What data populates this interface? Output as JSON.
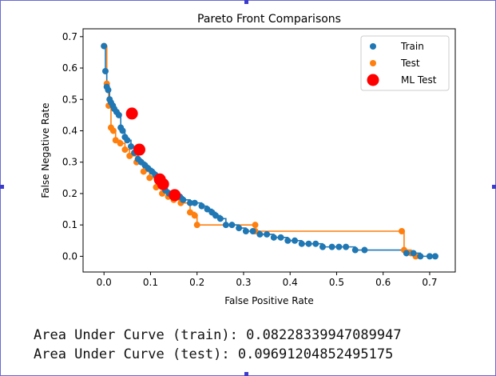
{
  "chart_data": {
    "type": "scatter",
    "title": "Pareto Front Comparisons",
    "xlabel": "False Positive Rate",
    "ylabel": "False Negative Rate",
    "xlim": [
      -0.045,
      0.755
    ],
    "ylim": [
      -0.05,
      0.725
    ],
    "xticks": [
      "0.0",
      "0.1",
      "0.2",
      "0.3",
      "0.4",
      "0.5",
      "0.6",
      "0.7"
    ],
    "yticks": [
      "0.0",
      "0.1",
      "0.2",
      "0.3",
      "0.4",
      "0.5",
      "0.6",
      "0.7"
    ],
    "legend_position": "top-right",
    "grid": false,
    "series": [
      {
        "name": "Train",
        "color": "#1f77b4",
        "marker": "circle",
        "step_line": true,
        "points": [
          [
            0.0,
            0.67
          ],
          [
            0.003,
            0.59
          ],
          [
            0.006,
            0.54
          ],
          [
            0.009,
            0.53
          ],
          [
            0.012,
            0.5
          ],
          [
            0.015,
            0.49
          ],
          [
            0.019,
            0.48
          ],
          [
            0.022,
            0.47
          ],
          [
            0.027,
            0.46
          ],
          [
            0.032,
            0.45
          ],
          [
            0.036,
            0.41
          ],
          [
            0.04,
            0.4
          ],
          [
            0.045,
            0.38
          ],
          [
            0.05,
            0.37
          ],
          [
            0.058,
            0.35
          ],
          [
            0.065,
            0.33
          ],
          [
            0.073,
            0.31
          ],
          [
            0.08,
            0.3
          ],
          [
            0.088,
            0.29
          ],
          [
            0.095,
            0.28
          ],
          [
            0.103,
            0.27
          ],
          [
            0.11,
            0.26
          ],
          [
            0.118,
            0.25
          ],
          [
            0.125,
            0.23
          ],
          [
            0.132,
            0.21
          ],
          [
            0.14,
            0.2
          ],
          [
            0.148,
            0.2
          ],
          [
            0.155,
            0.19
          ],
          [
            0.163,
            0.19
          ],
          [
            0.17,
            0.18
          ],
          [
            0.185,
            0.17
          ],
          [
            0.195,
            0.17
          ],
          [
            0.21,
            0.16
          ],
          [
            0.222,
            0.15
          ],
          [
            0.232,
            0.14
          ],
          [
            0.24,
            0.13
          ],
          [
            0.25,
            0.12
          ],
          [
            0.262,
            0.1
          ],
          [
            0.275,
            0.1
          ],
          [
            0.29,
            0.09
          ],
          [
            0.305,
            0.08
          ],
          [
            0.32,
            0.08
          ],
          [
            0.335,
            0.07
          ],
          [
            0.35,
            0.07
          ],
          [
            0.365,
            0.06
          ],
          [
            0.38,
            0.06
          ],
          [
            0.395,
            0.05
          ],
          [
            0.41,
            0.05
          ],
          [
            0.425,
            0.04
          ],
          [
            0.44,
            0.04
          ],
          [
            0.455,
            0.04
          ],
          [
            0.47,
            0.03
          ],
          [
            0.49,
            0.03
          ],
          [
            0.505,
            0.03
          ],
          [
            0.52,
            0.03
          ],
          [
            0.54,
            0.02
          ],
          [
            0.56,
            0.02
          ],
          [
            0.65,
            0.01
          ],
          [
            0.665,
            0.01
          ],
          [
            0.68,
            0.0
          ],
          [
            0.7,
            0.0
          ],
          [
            0.712,
            0.0
          ]
        ]
      },
      {
        "name": "Test",
        "color": "#ff7f0e",
        "marker": "circle",
        "step_line": true,
        "points": [
          [
            0.0,
            0.67
          ],
          [
            0.006,
            0.55
          ],
          [
            0.01,
            0.48
          ],
          [
            0.015,
            0.41
          ],
          [
            0.02,
            0.4
          ],
          [
            0.025,
            0.37
          ],
          [
            0.035,
            0.36
          ],
          [
            0.045,
            0.34
          ],
          [
            0.055,
            0.32
          ],
          [
            0.07,
            0.3
          ],
          [
            0.085,
            0.27
          ],
          [
            0.098,
            0.25
          ],
          [
            0.112,
            0.22
          ],
          [
            0.125,
            0.2
          ],
          [
            0.138,
            0.19
          ],
          [
            0.15,
            0.18
          ],
          [
            0.165,
            0.17
          ],
          [
            0.185,
            0.14
          ],
          [
            0.195,
            0.13
          ],
          [
            0.2,
            0.1
          ],
          [
            0.325,
            0.1
          ],
          [
            0.325,
            0.08
          ],
          [
            0.64,
            0.08
          ],
          [
            0.645,
            0.02
          ],
          [
            0.66,
            0.01
          ],
          [
            0.67,
            0.0
          ]
        ]
      },
      {
        "name": "ML Test",
        "color": "#ff0000",
        "marker": "large-circle",
        "step_line": false,
        "points": [
          [
            0.06,
            0.455
          ],
          [
            0.076,
            0.34
          ],
          [
            0.12,
            0.245
          ],
          [
            0.127,
            0.23
          ],
          [
            0.152,
            0.195
          ]
        ]
      }
    ]
  },
  "auc": {
    "train": "Area Under Curve (train): 0.08228339947089947",
    "test": "Area Under Curve (test): 0.09691204852495175"
  }
}
